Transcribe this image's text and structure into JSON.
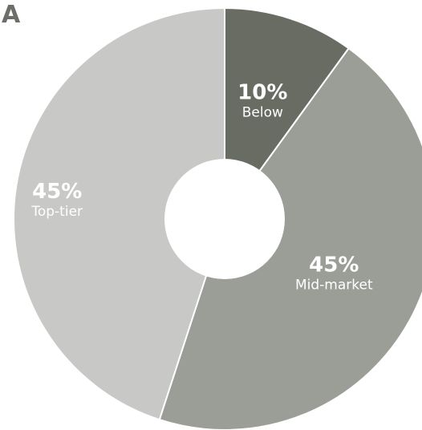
{
  "panel_label": "A",
  "colors": {
    "background": "#ffffff",
    "label": "#6b6f68",
    "slice_separator": "#ffffff",
    "text_on_slice": "#ffffff"
  },
  "chart_data": {
    "type": "pie",
    "donut": true,
    "start_angle_deg": 0,
    "direction": "clockwise",
    "slices": [
      {
        "label": "Below",
        "value": 10,
        "display": "10%",
        "color": "#686c63"
      },
      {
        "label": "Mid-market",
        "value": 45,
        "display": "45%",
        "color": "#9b9e97"
      },
      {
        "label": "Top-tier",
        "value": 45,
        "display": "45%",
        "color": "#c8c8c6"
      }
    ]
  }
}
